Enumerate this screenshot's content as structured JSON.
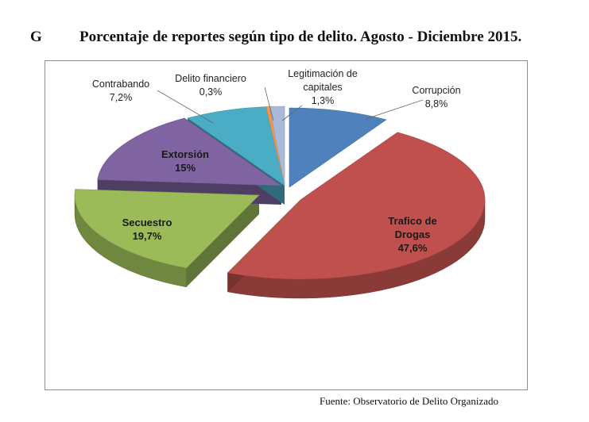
{
  "title_prefix": "G",
  "title": "Porcentaje de reportes según tipo de delito. Agosto - Diciembre 2015.",
  "source": "Fuente: Observatorio de Delito Organizado",
  "chart_data": {
    "type": "pie",
    "style": "3d-exploded",
    "slices": [
      {
        "name_lines": [
          "Corrupción"
        ],
        "value_label": "8,8%",
        "value": 8.8,
        "color": "#4f81bd"
      },
      {
        "name_lines": [
          "Trafico de",
          "Drogas"
        ],
        "value_label": "47,6%",
        "value": 47.6,
        "color": "#c0504d"
      },
      {
        "name_lines": [
          "Secuestro"
        ],
        "value_label": "19,7%",
        "value": 19.7,
        "color": "#9bbb59"
      },
      {
        "name_lines": [
          "Extorsión"
        ],
        "value_label": "15%",
        "value": 15.0,
        "color": "#8064a2"
      },
      {
        "name_lines": [
          "Contrabando"
        ],
        "value_label": "7,2%",
        "value": 7.2,
        "color": "#4bacc6"
      },
      {
        "name_lines": [
          "Delito financiero"
        ],
        "value_label": "0,3%",
        "value": 0.3,
        "color": "#f79646"
      },
      {
        "name_lines": [
          "Legitimación de",
          "capitales"
        ],
        "value_label": "1,3%",
        "value": 1.3,
        "color": "#a9b9d9"
      }
    ]
  }
}
